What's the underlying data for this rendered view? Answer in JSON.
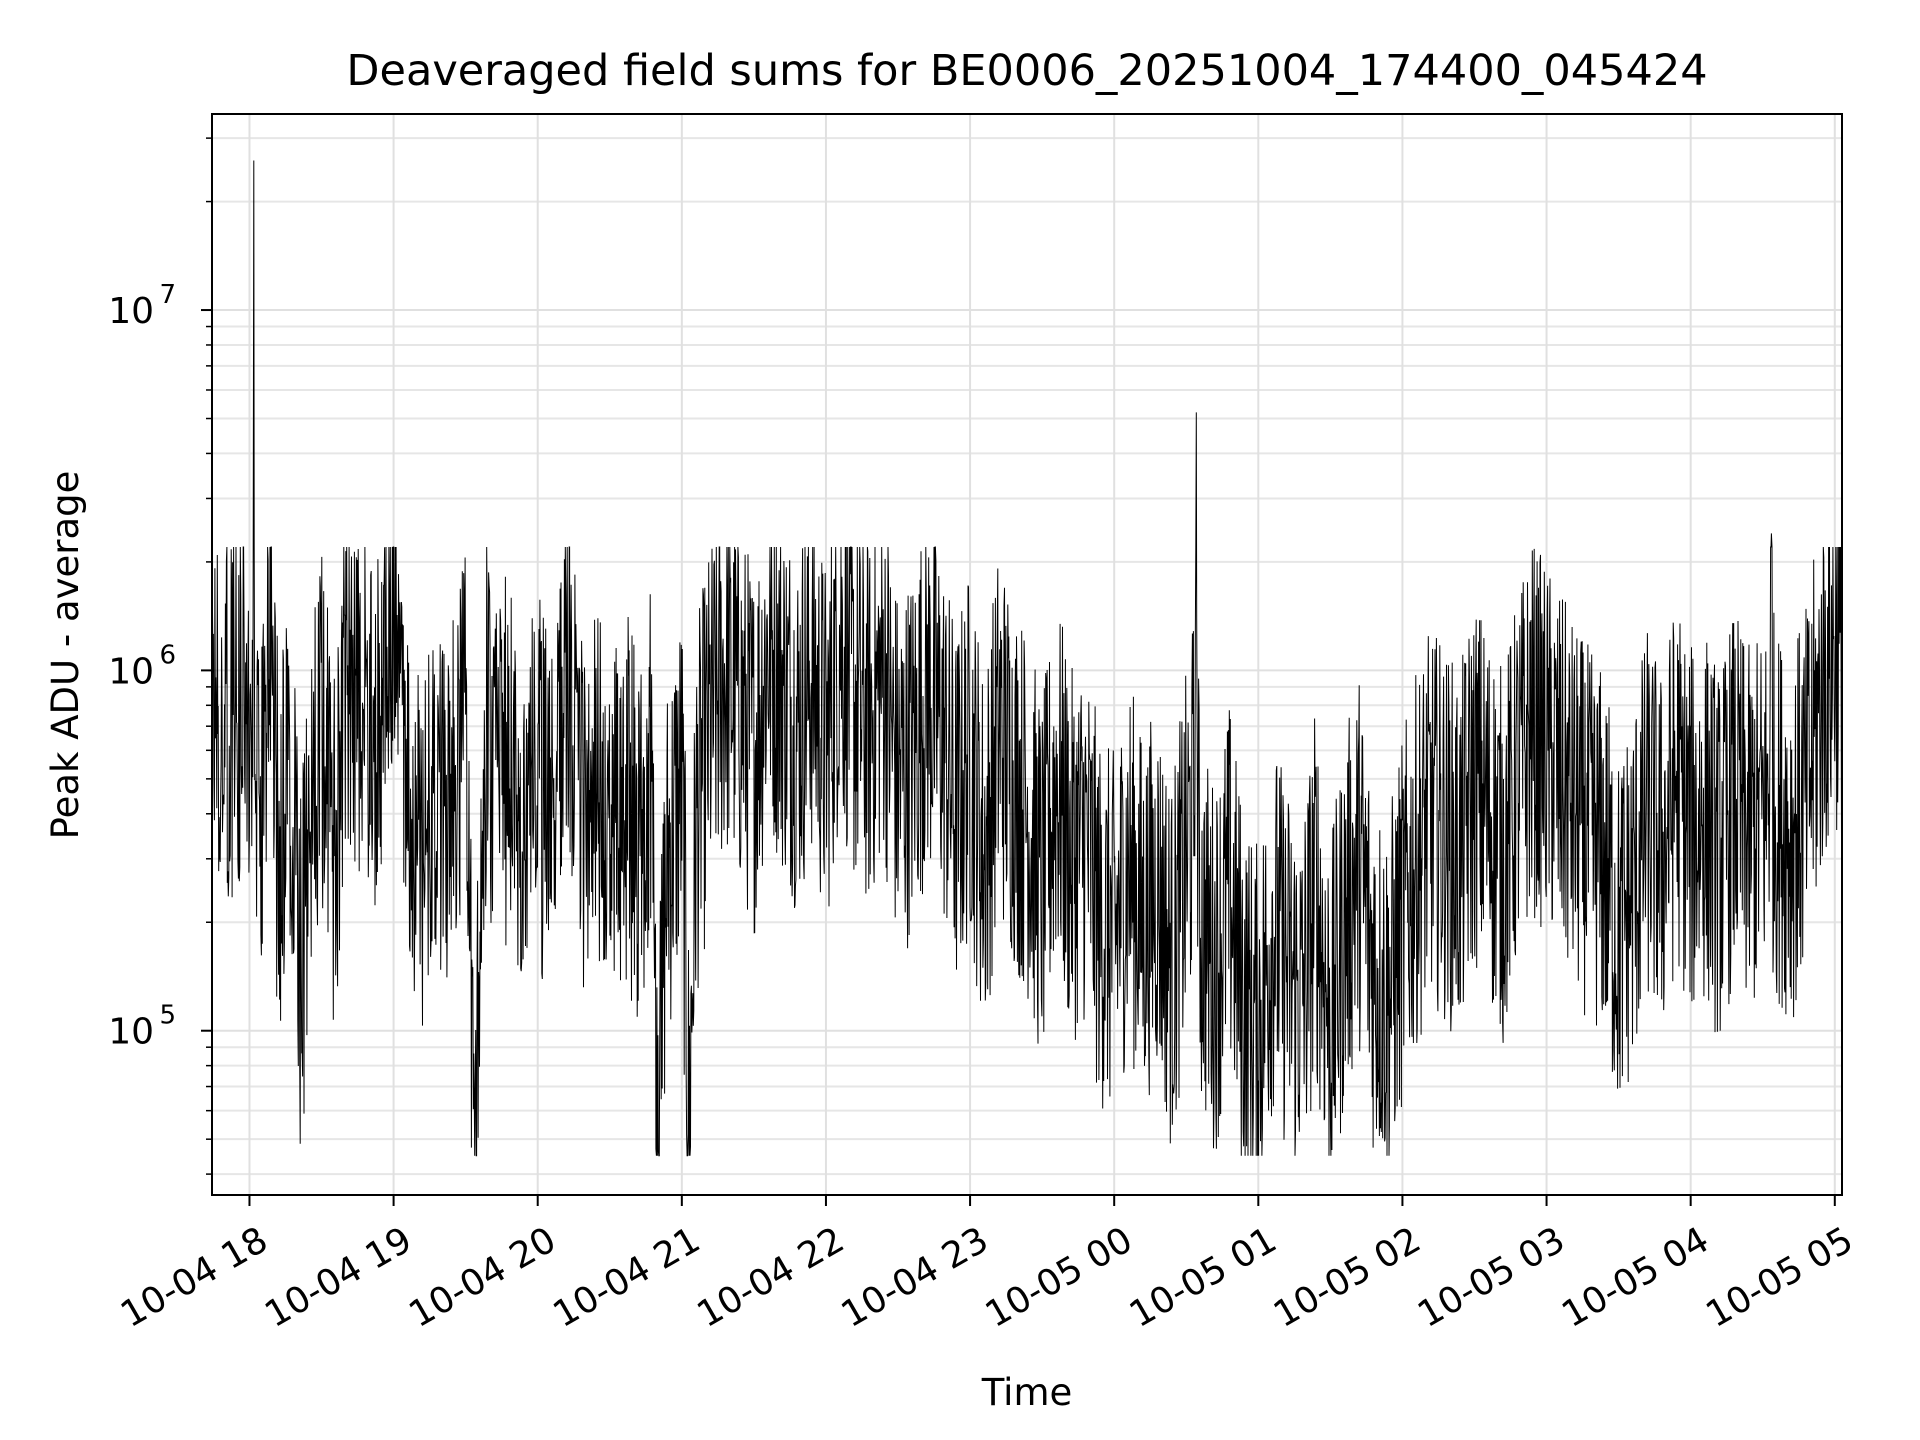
{
  "chart_data": {
    "type": "line",
    "title": "Deaveraged field sums for BE0006_20251004_174400_045424",
    "xlabel": "Time",
    "ylabel": "Peak ADU - average",
    "yscale": "log",
    "ylim": [
      35000,
      35000000
    ],
    "y_ticks": [
      {
        "value": 100000,
        "base": "10",
        "exp": "5"
      },
      {
        "value": 1000000,
        "base": "10",
        "exp": "6"
      },
      {
        "value": 10000000,
        "base": "10",
        "exp": "7"
      }
    ],
    "x_ticks": [
      "10-04 18",
      "10-04 19",
      "10-04 20",
      "10-04 21",
      "10-04 22",
      "10-04 23",
      "10-05 00",
      "10-05 01",
      "10-05 02",
      "10-05 03",
      "10-05 04",
      "10-05 05"
    ],
    "x_range_hours": [
      17.74,
      29.05
    ],
    "grid": true,
    "line_color": "#000000",
    "series": [
      {
        "name": "Peak ADU - average",
        "x": [
          17.74,
          17.8,
          17.87,
          17.94,
          18.0,
          18.03,
          18.06,
          18.1,
          18.14,
          18.2,
          18.3,
          18.35,
          18.42,
          18.5,
          18.6,
          18.65,
          18.72,
          18.8,
          18.88,
          18.95,
          19.02,
          19.06,
          19.1,
          19.2,
          19.3,
          19.4,
          19.5,
          19.57,
          19.6,
          19.65,
          19.7,
          19.8,
          19.9,
          20.0,
          20.1,
          20.2,
          20.25,
          20.3,
          20.4,
          20.5,
          20.6,
          20.7,
          20.8,
          20.82,
          20.9,
          21.0,
          21.05,
          21.1,
          21.2,
          21.3,
          21.4,
          21.5,
          21.6,
          21.7,
          21.8,
          21.9,
          22.0,
          22.1,
          22.2,
          22.3,
          22.4,
          22.5,
          22.6,
          22.7,
          22.8,
          22.9,
          23.0,
          23.1,
          23.2,
          23.3,
          23.4,
          23.5,
          23.6,
          23.7,
          23.8,
          23.9,
          24.0,
          24.1,
          24.2,
          24.3,
          24.4,
          24.5,
          24.57,
          24.6,
          24.7,
          24.8,
          24.9,
          25.0,
          25.1,
          25.2,
          25.3,
          25.4,
          25.5,
          25.6,
          25.7,
          25.8,
          25.9,
          26.0,
          26.1,
          26.2,
          26.3,
          26.4,
          26.5,
          26.6,
          26.7,
          26.8,
          26.9,
          27.0,
          27.1,
          27.2,
          27.3,
          27.4,
          27.5,
          27.6,
          27.7,
          27.8,
          27.9,
          28.0,
          28.1,
          28.2,
          28.3,
          28.4,
          28.5,
          28.56,
          28.6,
          28.7,
          28.8,
          28.9,
          28.95,
          29.0,
          29.05
        ],
        "y": [
          850000,
          950000,
          700000,
          900000,
          750000,
          26000000,
          700000,
          400000,
          1800000,
          300000,
          500000,
          120000,
          400000,
          700000,
          300000,
          900000,
          700000,
          1000000,
          600000,
          1600000,
          2000000,
          900000,
          450000,
          300000,
          500000,
          400000,
          650000,
          48000,
          300000,
          800000,
          500000,
          600000,
          400000,
          500000,
          350000,
          1200000,
          600000,
          400000,
          500000,
          300000,
          450000,
          350000,
          600000,
          45000,
          300000,
          500000,
          55000,
          400000,
          700000,
          1000000,
          800000,
          600000,
          1200000,
          900000,
          700000,
          1000000,
          600000,
          1300000,
          800000,
          700000,
          1000000,
          500000,
          600000,
          900000,
          700000,
          400000,
          600000,
          300000,
          700000,
          500000,
          400000,
          250000,
          500000,
          300000,
          350000,
          200000,
          180000,
          300000,
          200000,
          250000,
          150000,
          300000,
          5200000,
          200000,
          150000,
          250000,
          120000,
          100000,
          200000,
          150000,
          120000,
          250000,
          100000,
          200000,
          300000,
          150000,
          120000,
          200000,
          300000,
          400000,
          350000,
          300000,
          500000,
          400000,
          300000,
          500000,
          700000,
          600000,
          500000,
          400000,
          350000,
          300000,
          180000,
          250000,
          400000,
          300000,
          500000,
          350000,
          400000,
          300000,
          450000,
          350000,
          400000,
          2400000,
          400000,
          350000,
          450000,
          800000,
          1000000,
          1200000,
          1100000
        ]
      }
    ]
  }
}
